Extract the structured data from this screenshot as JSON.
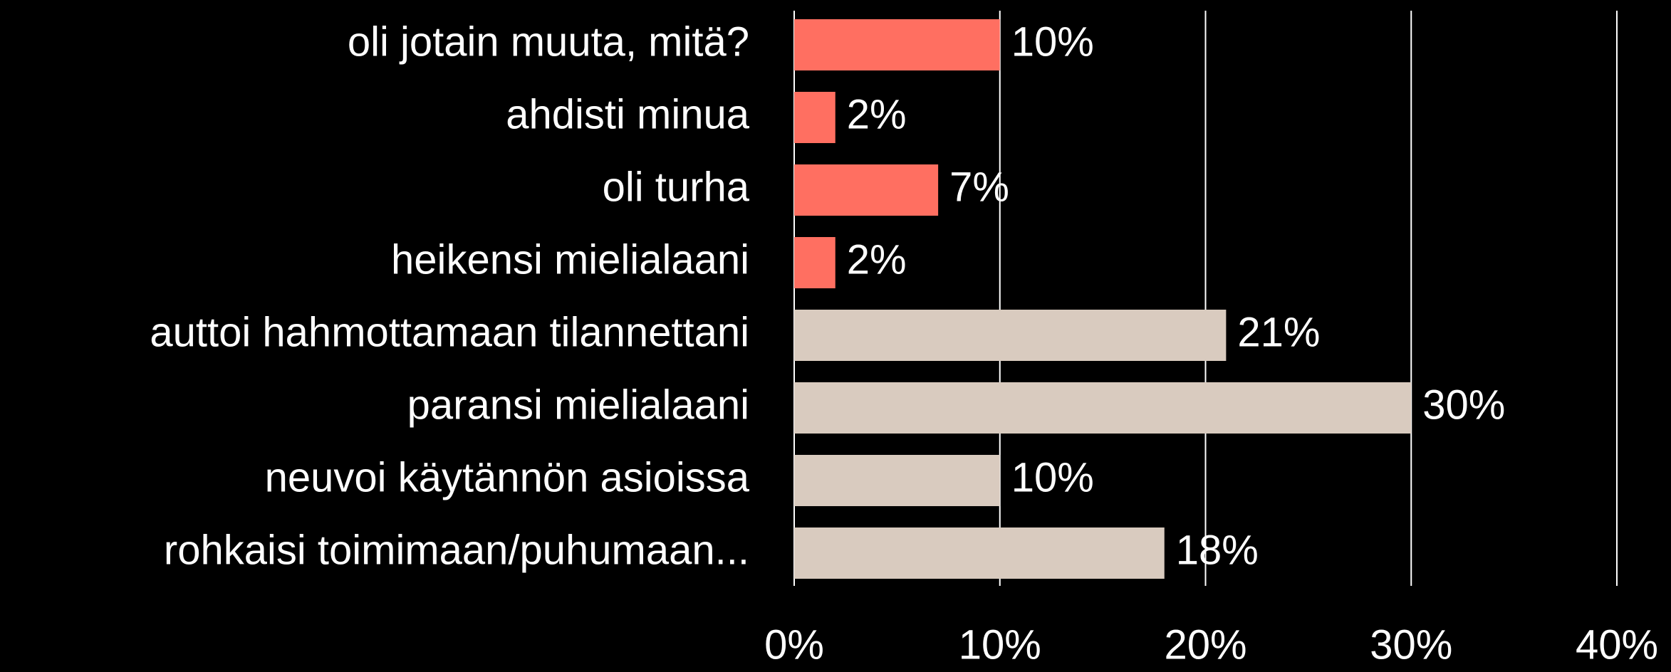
{
  "chart_data": {
    "type": "bar",
    "orientation": "horizontal",
    "categories": [
      "oli jotain muuta, mitä?",
      "ahdisti minua",
      "oli turha",
      "heikensi mielialaani",
      "auttoi hahmottamaan tilannettani",
      "paransi mielialaani",
      "neuvoi käytännön asioissa",
      "rohkaisi toimimaan/puhumaan..."
    ],
    "values": [
      10,
      2,
      7,
      2,
      21,
      30,
      10,
      18
    ],
    "value_labels": [
      "10%",
      "2%",
      "7%",
      "2%",
      "21%",
      "30%",
      "10%",
      "18%"
    ],
    "colors": [
      "#ff6f61",
      "#ff6f61",
      "#ff6f61",
      "#ff6f61",
      "#d9cbbf",
      "#d9cbbf",
      "#d9cbbf",
      "#d9cbbf"
    ],
    "xlim": [
      0,
      40
    ],
    "xticks": [
      {
        "value": 0,
        "label": "0%"
      },
      {
        "value": 10,
        "label": "10%"
      },
      {
        "value": 20,
        "label": "20%"
      },
      {
        "value": 30,
        "label": "30%"
      },
      {
        "value": 40,
        "label": "40%"
      }
    ],
    "grid": true
  }
}
